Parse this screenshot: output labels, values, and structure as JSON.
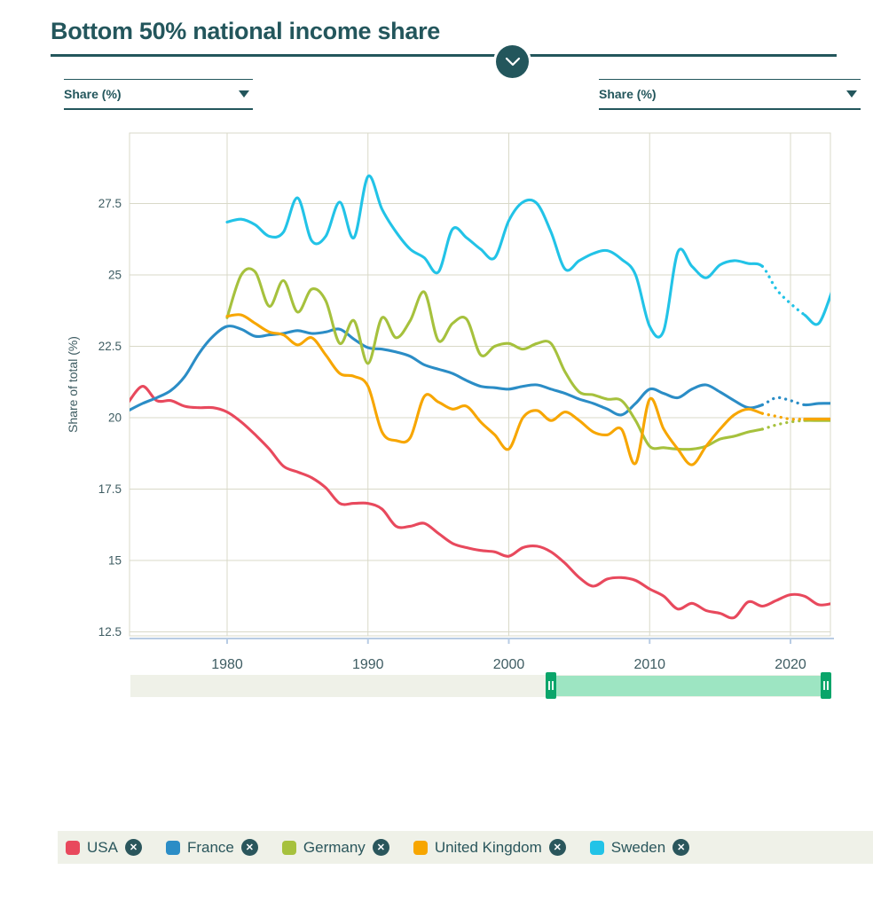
{
  "header": {
    "title": "Bottom 50% national income share",
    "accent_color": "#23565c",
    "collapse_icon": "chevron-down"
  },
  "controls": {
    "left_series_selector": {
      "value": "Share (%)",
      "icon": "dropdown-arrow"
    },
    "right_series_selector": {
      "value": "Share (%)",
      "icon": "dropdown-arrow"
    }
  },
  "chart_data": {
    "type": "line",
    "title": "Bottom 50% national income share",
    "xlabel": "",
    "ylabel": "Share of total (%)",
    "xlim": [
      1973,
      2023
    ],
    "ylim": [
      12.35,
      30.0
    ],
    "grid": true,
    "x_ticks": [
      1980,
      1990,
      2000,
      2010,
      2020
    ],
    "y_ticks": [
      12.5,
      15,
      17.5,
      20,
      22.5,
      25,
      27.5
    ],
    "legend_position": "bottom",
    "series": [
      {
        "name": "USA",
        "color": "#e8495d",
        "start_year": 1973,
        "end_year": 2023,
        "dotted_range": null,
        "values": [
          20.55,
          21.1,
          20.6,
          20.6,
          20.4,
          20.35,
          20.35,
          20.2,
          19.85,
          19.4,
          18.9,
          18.3,
          18.1,
          17.9,
          17.55,
          17.0,
          17.0,
          17.0,
          16.8,
          16.2,
          16.2,
          16.3,
          15.95,
          15.6,
          15.45,
          15.35,
          15.3,
          15.15,
          15.45,
          15.5,
          15.3,
          14.9,
          14.4,
          14.1,
          14.35,
          14.4,
          14.3,
          14.0,
          13.75,
          13.3,
          13.5,
          13.25,
          13.15,
          13.0,
          13.55,
          13.4,
          13.6,
          13.8,
          13.75,
          13.45,
          13.5
        ]
      },
      {
        "name": "France",
        "color": "#2b8dc6",
        "start_year": 1973,
        "end_year": 2023,
        "dotted_range": [
          2018,
          2021
        ],
        "values": [
          20.25,
          20.5,
          20.7,
          20.95,
          21.45,
          22.25,
          22.85,
          23.2,
          23.1,
          22.85,
          22.9,
          22.95,
          23.05,
          22.95,
          23.0,
          23.1,
          22.75,
          22.45,
          22.4,
          22.3,
          22.15,
          21.85,
          21.7,
          21.55,
          21.3,
          21.1,
          21.05,
          21.0,
          21.1,
          21.15,
          21.0,
          20.85,
          20.65,
          20.5,
          20.3,
          20.1,
          20.5,
          21.0,
          20.85,
          20.7,
          21.0,
          21.15,
          20.9,
          20.6,
          20.35,
          20.45,
          20.7,
          20.6,
          20.45,
          20.5,
          20.5
        ]
      },
      {
        "name": "Germany",
        "color": "#a6c13d",
        "start_year": 1980,
        "end_year": 2023,
        "dotted_range": [
          2018,
          2021
        ],
        "values": [
          23.5,
          25.0,
          25.1,
          23.9,
          24.8,
          23.7,
          24.5,
          24.1,
          22.6,
          23.4,
          21.9,
          23.5,
          22.8,
          23.4,
          24.4,
          22.7,
          23.3,
          23.45,
          22.2,
          22.5,
          22.6,
          22.4,
          22.6,
          22.6,
          21.6,
          20.9,
          20.8,
          20.65,
          20.6,
          19.9,
          19.0,
          18.95,
          18.9,
          18.9,
          19.0,
          19.25,
          19.35,
          19.5,
          19.6,
          19.75,
          19.85,
          19.9,
          19.9,
          19.9
        ]
      },
      {
        "name": "United Kingdom",
        "color": "#f7a600",
        "start_year": 1980,
        "end_year": 2023,
        "dotted_range": [
          2018,
          2021
        ],
        "values": [
          23.55,
          23.6,
          23.3,
          23.0,
          22.9,
          22.55,
          22.8,
          22.2,
          21.55,
          21.45,
          21.1,
          19.5,
          19.2,
          19.3,
          20.75,
          20.55,
          20.3,
          20.4,
          19.85,
          19.4,
          18.9,
          20.0,
          20.25,
          19.9,
          20.2,
          19.9,
          19.5,
          19.4,
          19.6,
          18.4,
          20.65,
          19.6,
          18.9,
          18.35,
          19.0,
          19.6,
          20.1,
          20.3,
          20.15,
          20.05,
          19.95,
          19.95,
          19.95,
          19.95
        ]
      },
      {
        "name": "Sweden",
        "color": "#22c3e7",
        "start_year": 1980,
        "end_year": 2023,
        "dotted_range": [
          2018,
          2021
        ],
        "values": [
          26.85,
          26.95,
          26.75,
          26.35,
          26.5,
          27.7,
          26.2,
          26.35,
          27.55,
          26.3,
          28.45,
          27.3,
          26.5,
          25.9,
          25.6,
          25.1,
          26.6,
          26.3,
          25.9,
          25.6,
          26.9,
          27.55,
          27.5,
          26.5,
          25.2,
          25.5,
          25.75,
          25.85,
          25.55,
          25.0,
          23.2,
          23.05,
          25.8,
          25.3,
          24.9,
          25.35,
          25.5,
          25.4,
          25.3,
          24.5,
          24.0,
          23.6,
          23.3,
          24.5
        ]
      }
    ],
    "style": {
      "grid_color": "#d9d9c8",
      "baseline_color": "#b8cce4",
      "tick_label_color": "#3e5c62"
    }
  },
  "timeline_slider": {
    "full_range": [
      1973,
      2023
    ],
    "selected_range": [
      2003,
      2023
    ],
    "track_color": "#eff1e8",
    "range_color": "#9de5c2",
    "handle_color": "#0aa56a",
    "handle_icon": "grip"
  },
  "legend": {
    "background": "#eff1e8",
    "remove_icon": "circle-x",
    "remove_glyph": "✕",
    "items": [
      {
        "label": "USA",
        "color": "#e8495d"
      },
      {
        "label": "France",
        "color": "#2b8dc6"
      },
      {
        "label": "Germany",
        "color": "#a6c13d"
      },
      {
        "label": "United Kingdom",
        "color": "#f7a600"
      },
      {
        "label": "Sweden",
        "color": "#22c3e7"
      }
    ]
  }
}
